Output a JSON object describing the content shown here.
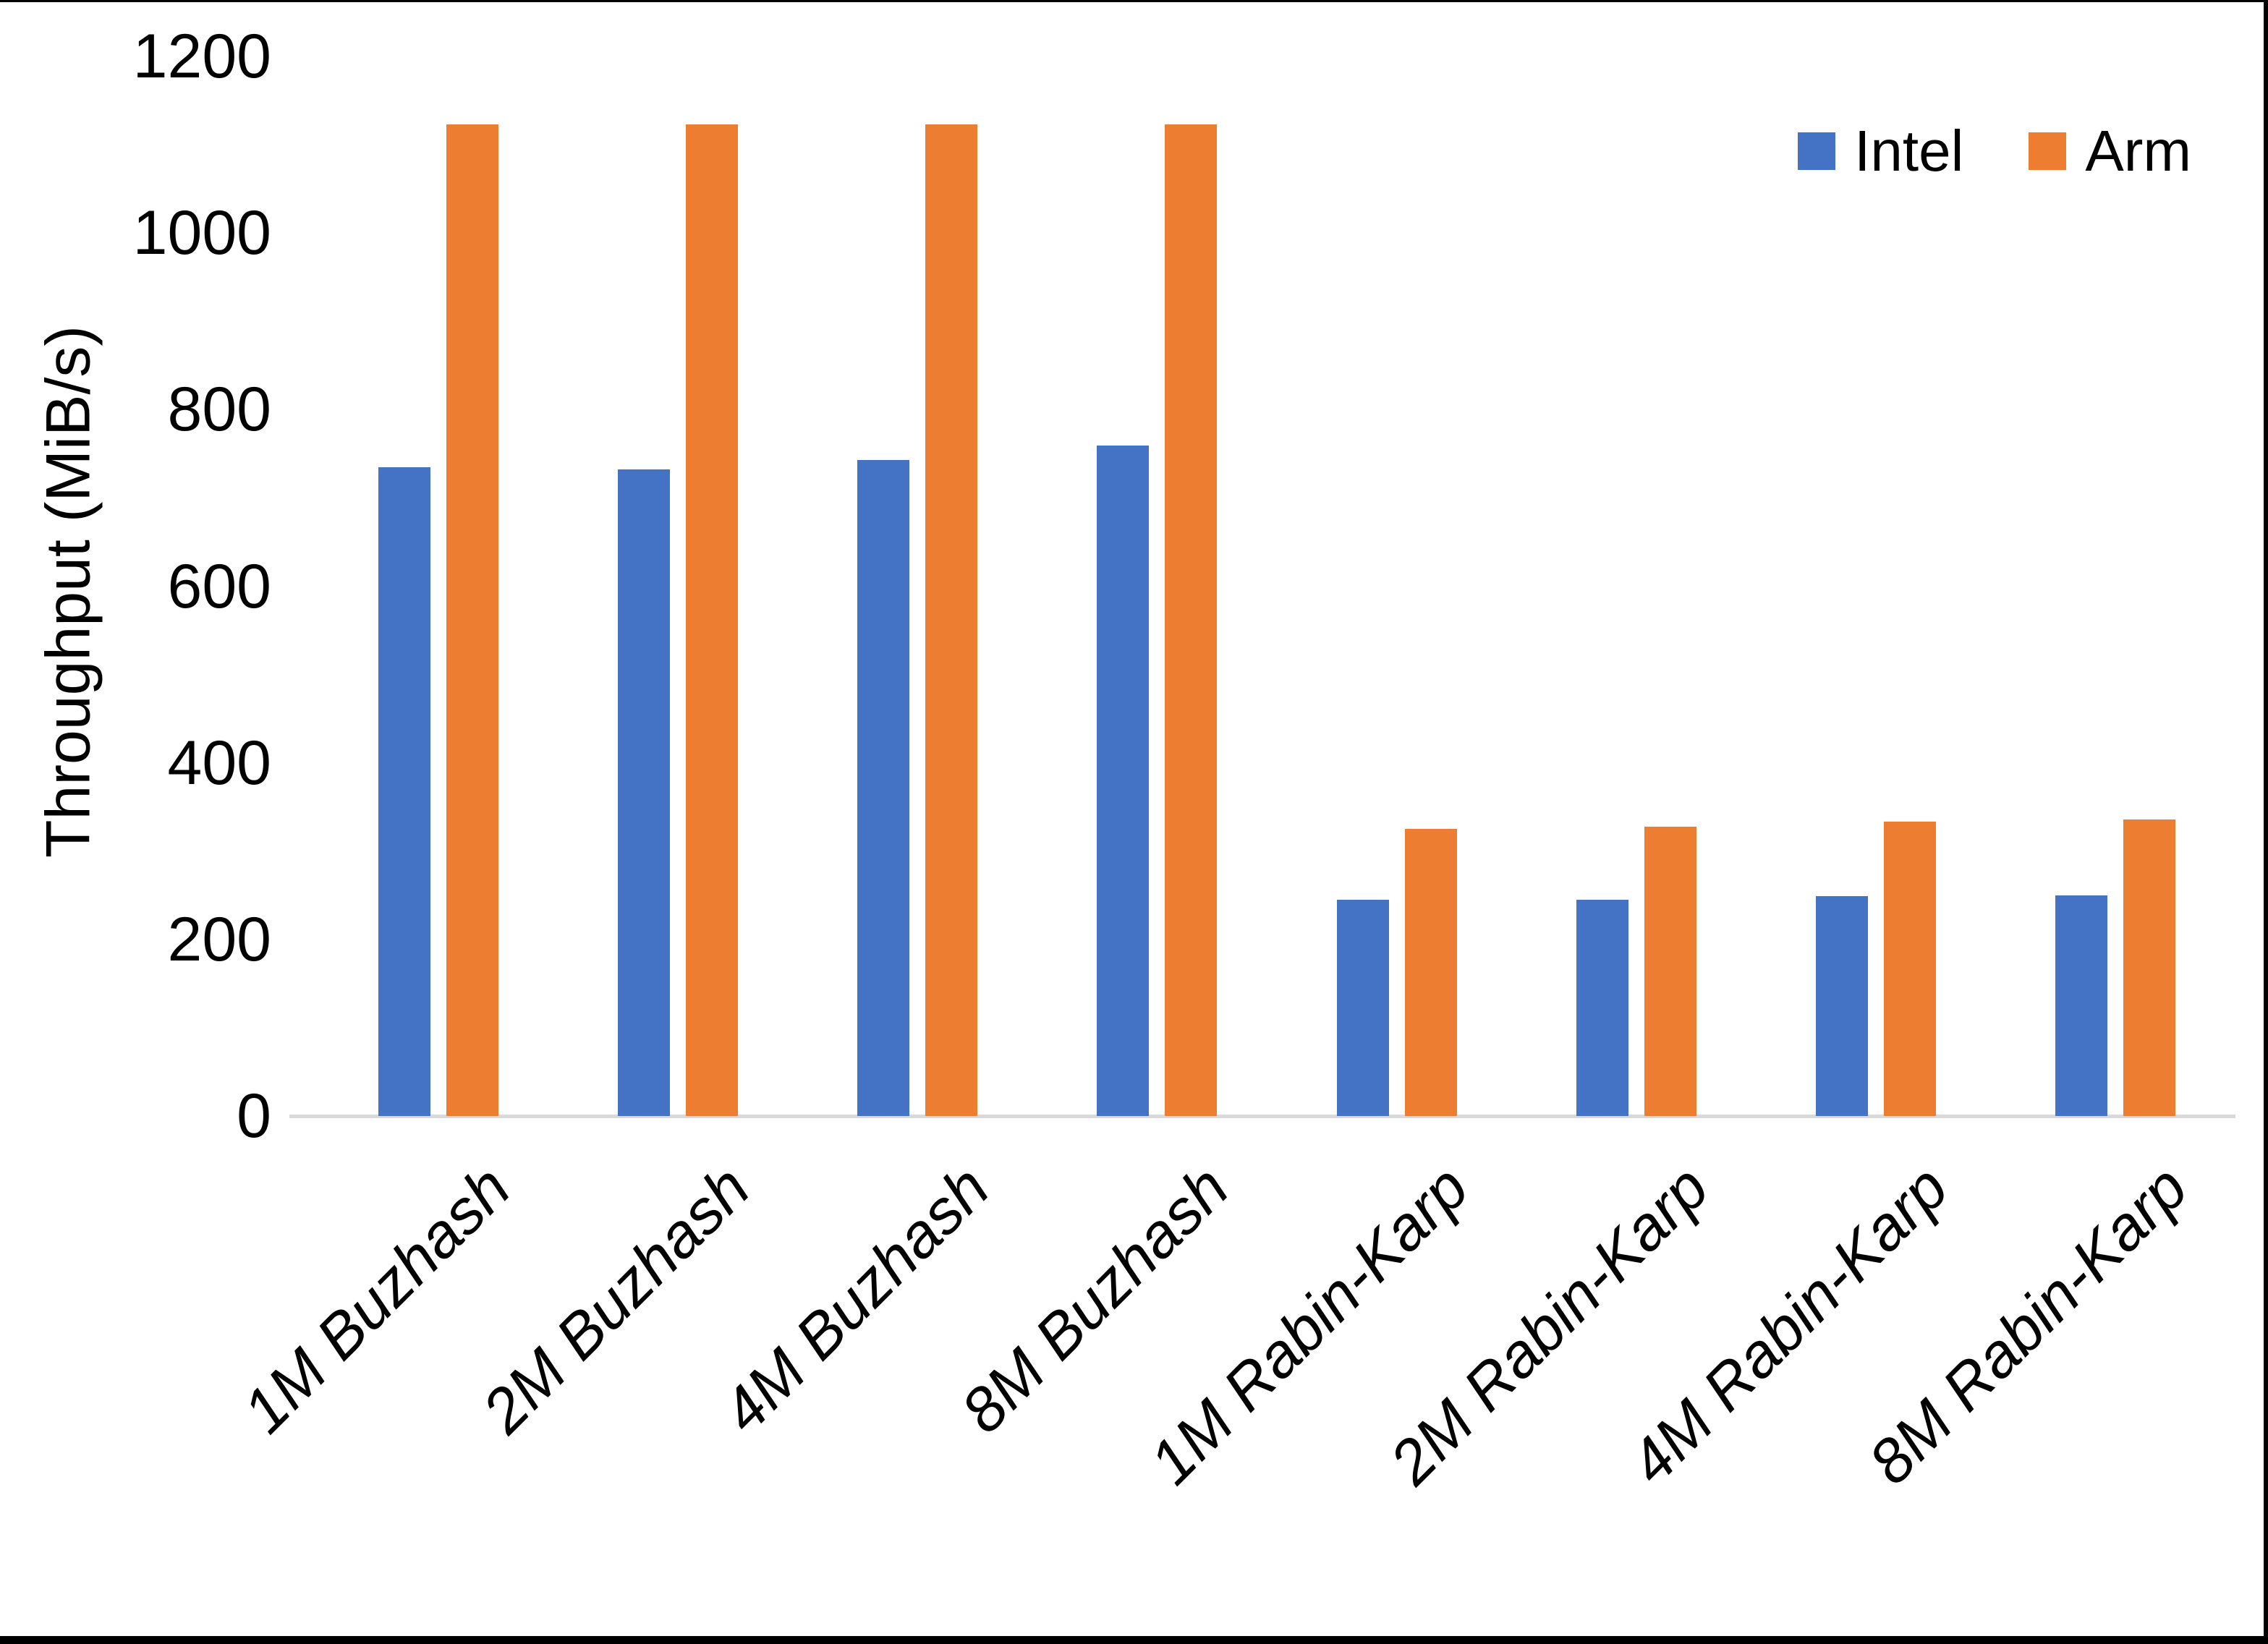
{
  "chart_data": {
    "type": "bar",
    "title": "",
    "xlabel": "",
    "ylabel": "Throughput (MiB/s)",
    "ylim": [
      0,
      1200
    ],
    "ytick_step": 200,
    "yticks": [
      0,
      200,
      400,
      600,
      800,
      1000,
      1200
    ],
    "grid": false,
    "legend_position": "top-right",
    "axis_line_color": "#d9d9d9",
    "categories": [
      "1M Buzhash",
      "2M Buzhash",
      "4M Buzhash",
      "8M Buzhash",
      "1M Rabin-Karp",
      "2M Rabin-Karp",
      "4M Rabin-Karp",
      "8M Rabin-Karp"
    ],
    "series": [
      {
        "name": "Intel",
        "color": "#4472C4",
        "values": [
          735,
          732,
          743,
          759,
          245,
          245,
          249,
          250
        ]
      },
      {
        "name": "Arm",
        "color": "#ED7D31",
        "values": [
          1123,
          1123,
          1123,
          1123,
          325,
          328,
          333,
          336
        ]
      }
    ]
  }
}
